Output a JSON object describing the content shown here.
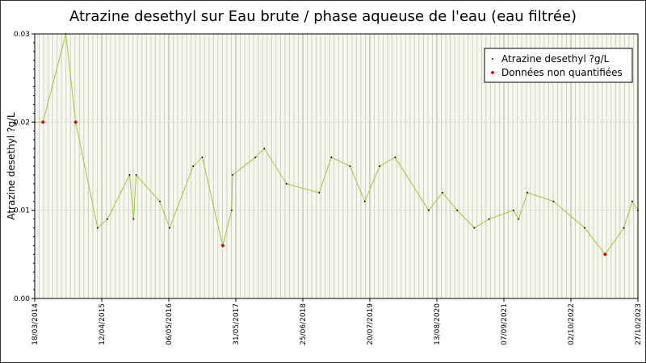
{
  "chart_data": {
    "type": "line",
    "title": "Atrazine desethyl sur Eau brute / phase aqueuse de l'eau (eau filtrée)",
    "y_label": "Atrazine desethyl ?g/L",
    "x": [
      "2014-03-18",
      "2014-05-05",
      "2014-09-15",
      "2014-11-11",
      "2015-03-19",
      "2015-05-15",
      "2015-09-21",
      "2015-10-14",
      "2015-10-29",
      "2016-03-15",
      "2016-05-11",
      "2016-09-25",
      "2016-11-17",
      "2017-03-16",
      "2017-05-07",
      "2017-05-12",
      "2017-09-22",
      "2017-11-13",
      "2018-03-22",
      "2018-09-28",
      "2018-12-08",
      "2019-03-27",
      "2019-06-21",
      "2019-09-15",
      "2019-12-14",
      "2020-06-26",
      "2020-09-15",
      "2020-12-09",
      "2021-03-19",
      "2021-06-13",
      "2021-11-02",
      "2021-12-01",
      "2022-01-22",
      "2022-06-23",
      "2022-12-21",
      "2023-04-19",
      "2023-08-06",
      "2023-09-24",
      "2023-10-27"
    ],
    "series": [
      {
        "name": "Atrazine desethyl ?g/L",
        "color": "#000000",
        "line_color": "#99cc33",
        "values": [
          0.02,
          0.02,
          0.03,
          0.02,
          0.008,
          0.009,
          0.014,
          0.009,
          0.014,
          0.011,
          0.008,
          0.015,
          0.016,
          0.006,
          0.01,
          0.014,
          0.016,
          0.017,
          0.013,
          0.012,
          0.016,
          0.015,
          0.011,
          0.015,
          0.016,
          0.01,
          0.012,
          0.01,
          0.008,
          0.009,
          0.01,
          0.009,
          0.012,
          0.011,
          0.008,
          0.005,
          0.008,
          0.011,
          0.01
        ]
      },
      {
        "name": "Données non quantifiées",
        "color": "#dd0000",
        "values": [
          null,
          0.02,
          null,
          0.02,
          null,
          null,
          null,
          null,
          null,
          null,
          null,
          null,
          null,
          0.006,
          null,
          null,
          null,
          null,
          null,
          null,
          null,
          null,
          null,
          null,
          null,
          null,
          null,
          null,
          null,
          null,
          null,
          null,
          null,
          null,
          null,
          0.005,
          null,
          null,
          null
        ]
      }
    ],
    "xlim": [
      "2014-03-18",
      "2023-10-27"
    ],
    "xticks": [
      {
        "value": "2014-03-18",
        "label": "18/03/2014"
      },
      {
        "value": "2015-04-12",
        "label": "12/04/2015"
      },
      {
        "value": "2016-05-06",
        "label": "06/05/2016"
      },
      {
        "value": "2017-05-31",
        "label": "31/05/2017"
      },
      {
        "value": "2018-06-25",
        "label": "25/06/2018"
      },
      {
        "value": "2019-07-20",
        "label": "20/07/2019"
      },
      {
        "value": "2020-08-13",
        "label": "13/08/2020"
      },
      {
        "value": "2021-09-07",
        "label": "07/09/2021"
      },
      {
        "value": "2022-10-02",
        "label": "02/10/2022"
      },
      {
        "value": "2023-10-27",
        "label": "27/10/2023"
      }
    ],
    "ylim": [
      0,
      0.03
    ],
    "yticks": [
      {
        "value": 0,
        "label": "0.00"
      },
      0.01,
      0.02,
      0.03
    ],
    "grid": true,
    "legend": "top-right"
  }
}
